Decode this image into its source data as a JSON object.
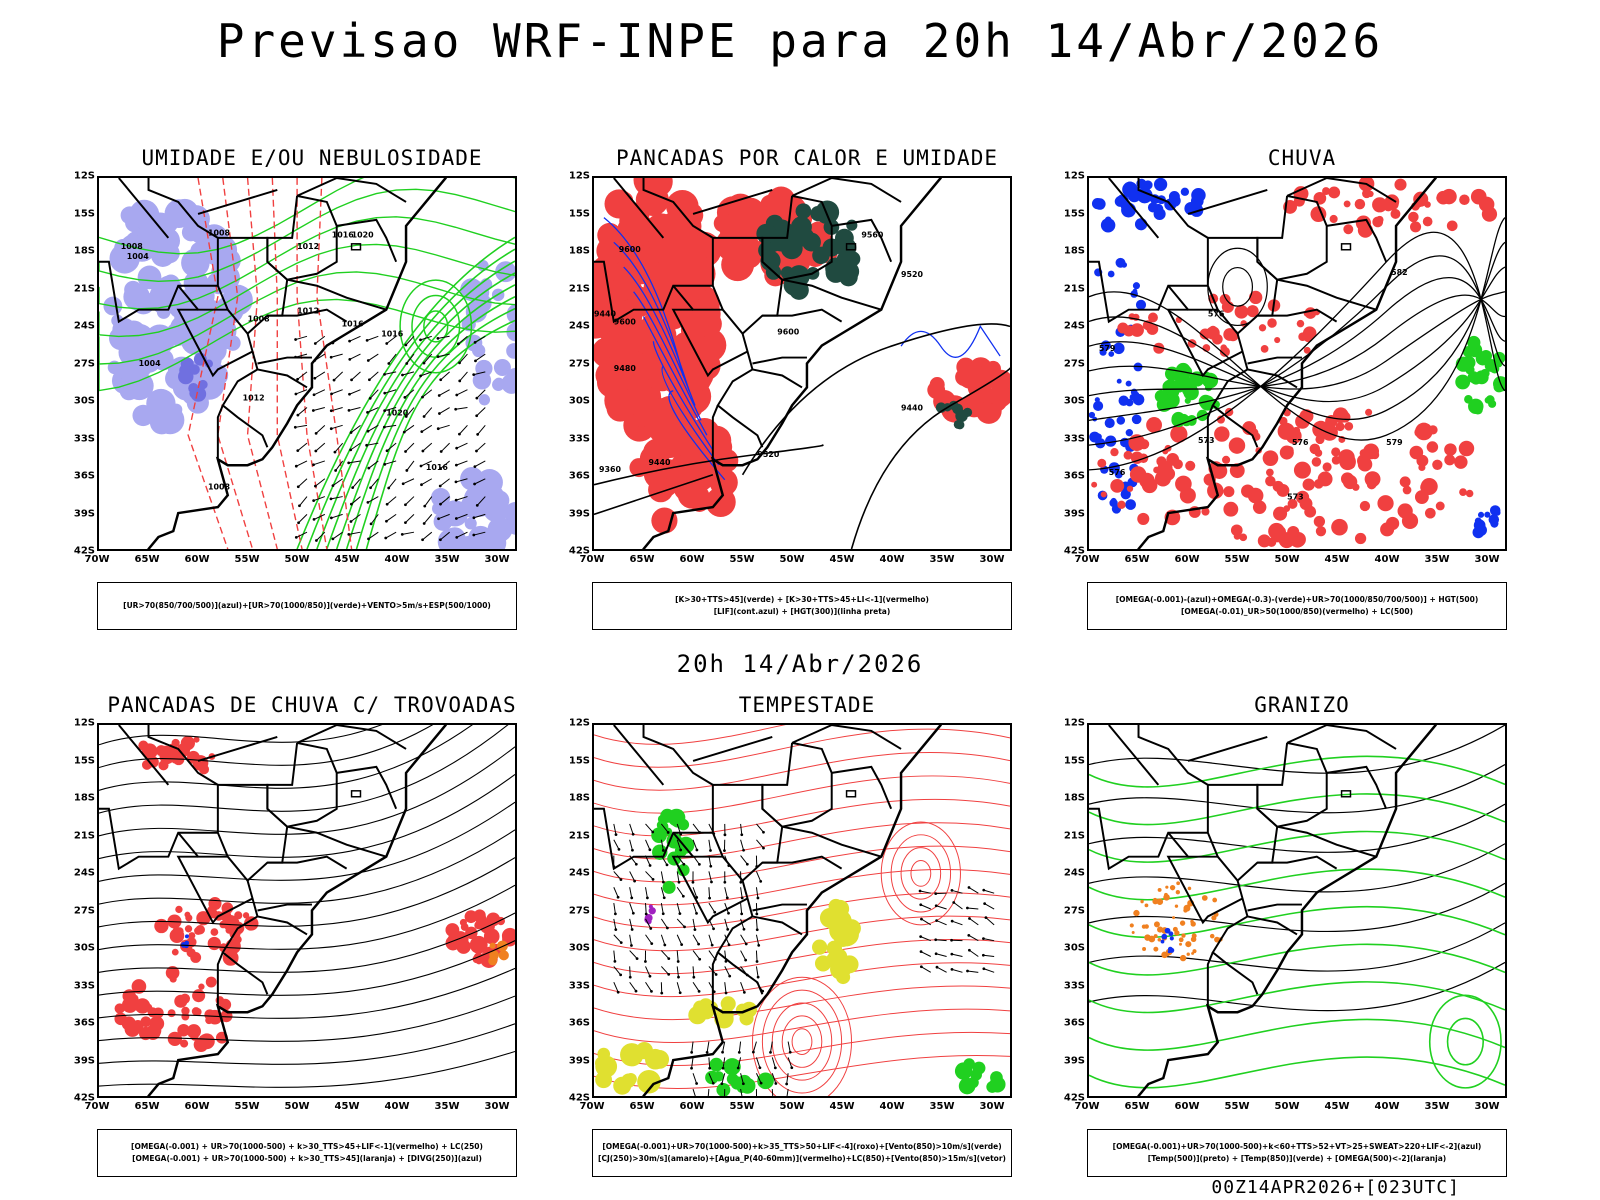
{
  "main_title": "Previsao WRF-INPE  para 20h 14/Abr/2026",
  "mid_title": "20h 14/Abr/2026",
  "footer": "00Z14APR2026+[023UTC]",
  "lat_labels": [
    "12S",
    "15S",
    "18S",
    "21S",
    "24S",
    "27S",
    "30S",
    "33S",
    "36S",
    "39S",
    "42S"
  ],
  "lon_labels": [
    "70W",
    "65W",
    "60W",
    "55W",
    "50W",
    "45W",
    "40W",
    "35W",
    "30W"
  ],
  "colors": {
    "red": "#f04040",
    "green": "#20d020",
    "blue": "#1030f0",
    "lavender": "#a8a8f0",
    "darkgreen": "#204a40",
    "orange": "#f08020",
    "yellow": "#e0e030",
    "purple": "#a020c0"
  },
  "panels": [
    {
      "id": "umidade",
      "title": "UMIDADE E/OU NEBULOSIDADE",
      "legend": [
        "[UR>70(850/700/500)](azul)+[UR>70(1000/850)](verde)+VENTO>5m/s+ESP(500/1000)"
      ],
      "contour_labels": [
        "1008",
        "1004",
        "1008",
        "1012",
        "1016",
        "1012",
        "1016",
        "1004",
        "1008",
        "1012",
        "1016",
        "1020",
        "1020",
        "1016",
        "1008"
      ]
    },
    {
      "id": "pancadas-calor",
      "title": "PANCADAS POR CALOR E UMIDADE",
      "legend": [
        "[K>30+TTS>45](verde) + [K>30+TTS>45+LI<-1](vermelho)",
        "[LIF](cont.azul) + [HGT(300)](linha preta)"
      ],
      "contour_labels": [
        "9600",
        "9560",
        "9520",
        "9600",
        "9600",
        "9440",
        "9480",
        "9440",
        "9520",
        "9360",
        "9440"
      ]
    },
    {
      "id": "chuva",
      "title": "CHUVA",
      "legend": [
        "[OMEGA(-0.001)-(azul)+OMEGA(-0.3)-(verde)+UR>70(1000/850/700/500)] + HGT(500)",
        "[OMEGA(-0.01)_UR>50(1000/850)(vermelho) + LC(500)"
      ],
      "contour_labels": [
        "582",
        "576",
        "579",
        "576",
        "573",
        "576",
        "579",
        "573"
      ]
    },
    {
      "id": "pancadas-trovoadas",
      "title": "PANCADAS DE CHUVA C/ TROVOADAS",
      "legend": [
        "[OMEGA(-0.001) + UR>70(1000-500) + k>30_TTS>45+LIF<-1](vermelho) + LC(250)",
        "[OMEGA(-0.001) + UR>70(1000-500) + k>30_TTS>45](laranja) + [DIVG(250)](azul)"
      ],
      "contour_labels": []
    },
    {
      "id": "tempestade",
      "title": "TEMPESTADE",
      "legend": [
        "[OMEGA(-0.001)+UR>70(1000-500)+k>35_TTS>50+LIF<-4](roxo)+[Vento(850)>10m/s](verde)",
        "[CJ(250)>30m/s](amarelo)+[Agua_P(40-60mm)](vermelho)+LC(850)+[Vento(850)>15m/s](vetor)"
      ],
      "contour_labels": []
    },
    {
      "id": "granizo",
      "title": "GRANIZO",
      "legend": [
        "[OMEGA(-0.001)+UR>70(1000-500)+k<60+TTS>52+VT>25+SWEAT>220+LIF<-2](azul)",
        "[Temp(500)](preto) + [Temp(850)](verde) + [OMEGA(500)<-2](laranja)"
      ],
      "contour_labels": []
    }
  ]
}
